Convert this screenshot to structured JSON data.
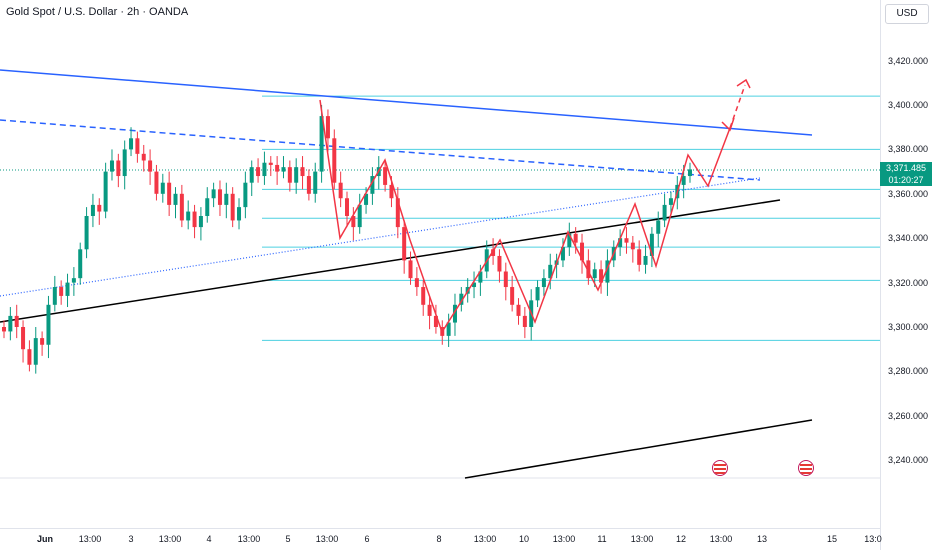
{
  "header": {
    "symbol_title": "Gold Spot / U.S. Dollar · 2h · OANDA",
    "currency_button": "USD"
  },
  "price_axis": {
    "ticks": [
      "3,420.000",
      "3,400.000",
      "3,380.000",
      "3,360.000",
      "3,340.000",
      "3,320.000",
      "3,300.000",
      "3,280.000",
      "3,260.000",
      "3,240.000"
    ],
    "last_price": "3,371.485",
    "countdown": "01:20:27"
  },
  "time_axis": {
    "ticks": [
      "Jun",
      "13:00",
      "3",
      "13:00",
      "4",
      "13:00",
      "5",
      "13:00",
      "6",
      "8",
      "13:00",
      "10",
      "13:00",
      "11",
      "13:00",
      "12",
      "13:00",
      "13",
      "15",
      "13:0"
    ]
  },
  "colors": {
    "bull": "#089981",
    "bear": "#f23645",
    "resistance": "#2962ff",
    "support": "#000000",
    "levels": "#4dd0e1",
    "projection": "#f23645"
  },
  "event_icons": [
    "us-flag-icon",
    "us-flag-icon"
  ]
}
